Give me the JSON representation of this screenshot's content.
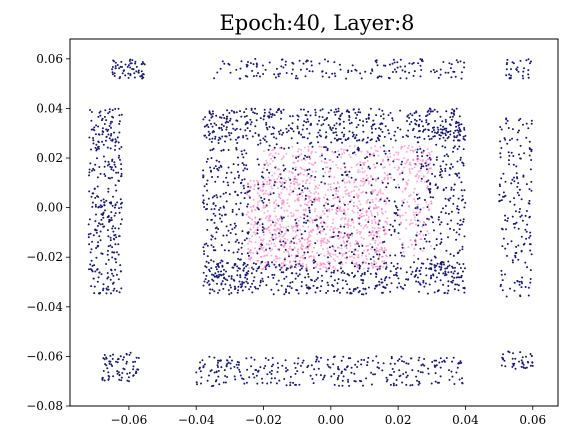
{
  "chart_data": {
    "type": "scatter",
    "title": "Epoch:40, Layer:8",
    "xlabel": "",
    "ylabel": "",
    "xlim": [
      -0.0775,
      0.0675
    ],
    "ylim": [
      -0.08,
      0.068
    ],
    "x_ticks": [
      -0.06,
      -0.04,
      -0.02,
      0.0,
      0.02,
      0.04,
      0.06
    ],
    "x_tick_labels": [
      "−0.06",
      "−0.04",
      "−0.02",
      "0.00",
      "0.02",
      "0.04",
      "0.06"
    ],
    "y_ticks": [
      0.06,
      0.04,
      0.02,
      0.0,
      -0.02,
      -0.04,
      -0.06,
      -0.08
    ],
    "y_tick_labels": [
      "0.06",
      "0.04",
      "0.02",
      "0.00",
      "−0.02",
      "−0.04",
      "−0.06",
      "−0.08"
    ],
    "grid": false,
    "series": [
      {
        "color": "#191970",
        "clusters": [
          {
            "xr": [
              -0.072,
              -0.062
            ],
            "yr": [
              -0.035,
              0.04
            ],
            "n": 320
          },
          {
            "xr": [
              -0.065,
              -0.055
            ],
            "yr": [
              0.052,
              0.06
            ],
            "n": 60
          },
          {
            "xr": [
              -0.068,
              -0.057
            ],
            "yr": [
              -0.07,
              -0.058
            ],
            "n": 70
          },
          {
            "xr": [
              0.05,
              0.06
            ],
            "yr": [
              -0.036,
              0.038
            ],
            "n": 170
          },
          {
            "xr": [
              0.052,
              0.06
            ],
            "yr": [
              0.052,
              0.06
            ],
            "n": 30
          },
          {
            "xr": [
              0.05,
              0.06
            ],
            "yr": [
              -0.065,
              -0.058
            ],
            "n": 40
          },
          {
            "xr": [
              -0.035,
              0.04
            ],
            "yr": [
              0.052,
              0.06
            ],
            "n": 160
          },
          {
            "xr": [
              -0.04,
              0.04
            ],
            "yr": [
              -0.072,
              -0.06
            ],
            "n": 300
          },
          {
            "xr": [
              -0.038,
              0.04
            ],
            "yr": [
              0.027,
              0.04
            ],
            "n": 420
          },
          {
            "xr": [
              -0.038,
              0.04
            ],
            "yr": [
              -0.035,
              -0.022
            ],
            "n": 420
          },
          {
            "xr": [
              -0.038,
              -0.024
            ],
            "yr": [
              -0.03,
              0.035
            ],
            "n": 260
          },
          {
            "xr": [
              0.025,
              0.04
            ],
            "yr": [
              -0.03,
              0.035
            ],
            "n": 260
          },
          {
            "xr": [
              -0.022,
              0.022
            ],
            "yr": [
              -0.022,
              0.028
            ],
            "n": 340
          }
        ]
      },
      {
        "color": "#ff69b4",
        "clusters": [
          {
            "xr": [
              -0.025,
              0.017
            ],
            "yr": [
              -0.025,
              0.012
            ],
            "n": 900
          },
          {
            "xr": [
              -0.02,
              0.03
            ],
            "yr": [
              0.012,
              0.025
            ],
            "n": 220
          },
          {
            "xr": [
              0.02,
              0.03
            ],
            "yr": [
              -0.02,
              0.02
            ],
            "n": 120
          }
        ]
      }
    ]
  }
}
